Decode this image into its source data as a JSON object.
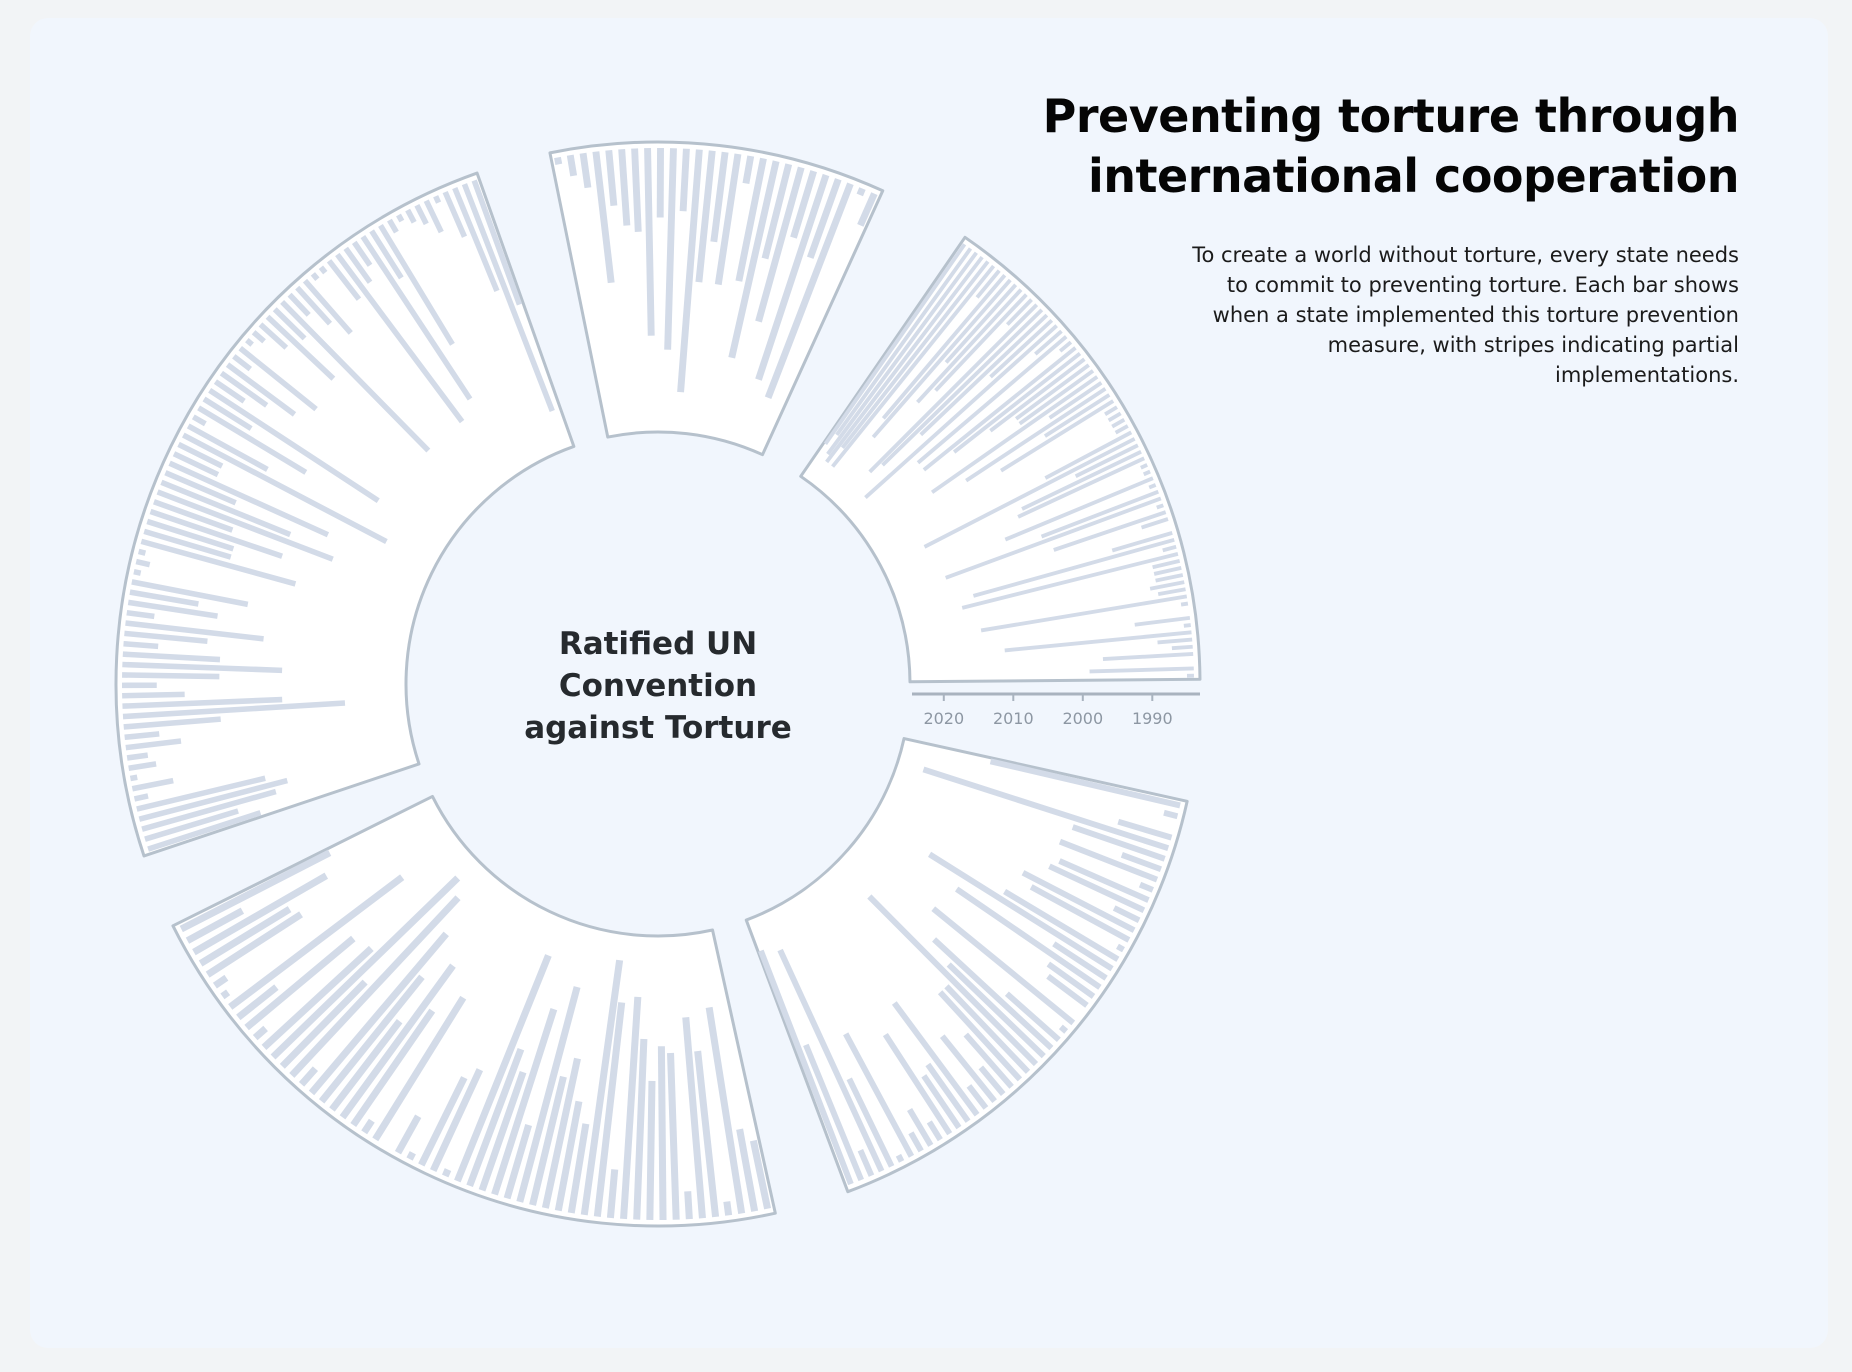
{
  "header": {
    "title_line1": "Preventing torture through",
    "title_line2": "international cooperation",
    "subtitle": "To create a world without torture, every state needs to commit to preventing torture. Each bar shows when a state implemented this torture prevention measure, with stripes indicating partial implementations."
  },
  "colors": {
    "background": "#f1f6fd",
    "sector_fill": "#ffffff",
    "bar": "#d3dbe8",
    "sector_stroke": "#b6c1cc",
    "axis": "#a9b3bf",
    "tick_text": "#8d97a3",
    "title": "#050505",
    "center_text": "#262a2e"
  },
  "chart_data": {
    "type": "radial-bar",
    "center_label_lines": [
      "Ratified UN",
      "Convention",
      "against Torture"
    ],
    "axis": {
      "domain": [
        1984,
        2024
      ],
      "ticks": [
        1990,
        2000,
        2010,
        2020
      ],
      "tick_labels": [
        "1990",
        "2000",
        "2010",
        "2020"
      ]
    },
    "sectors": [
      {
        "id": "east",
        "ratification_years": [
          2019,
          2017,
          2020,
          2021,
          2018,
          2021,
          1989,
          2011,
          2014,
          1999,
          2006,
          2003,
          1989,
          2018,
          2016,
          2009,
          1996,
          2021,
          1989,
          2012,
          1986,
          2012,
          2007,
          2001,
          1997,
          1997,
          2013,
          1993,
          2008,
          1995,
          2003,
          1986,
          1986,
          1986,
          1986,
          1998,
          2018,
          1994,
          2003,
          2004,
          1985,
          1985,
          2007,
          1985,
          2002,
          2017,
          1985,
          2001,
          1988,
          1984,
          1993,
          2014,
          1986,
          2016,
          1988,
          1988,
          1988,
          1989,
          1988,
          2014,
          1985,
          1984,
          1992,
          1985,
          2011,
          1989,
          1987,
          1997,
          1984,
          1999,
          1985
        ]
      },
      {
        "id": "north",
        "ratification_years": [
          1985,
          1987,
          1989,
          2003,
          1992,
          1995,
          1996,
          2011,
          1994,
          2013,
          1993,
          2019,
          2003,
          1997,
          2003,
          1988,
          2002,
          2013,
          1998,
          2007,
          1994,
          2015,
          1996,
          2017,
          1985,
          1989
        ]
      },
      {
        "id": "west",
        "ratification_years": [
          2001,
          1998,
          2004,
          2006,
          2003,
          1986,
          1990,
          1985,
          1988,
          1987,
          1992,
          1989,
          1998,
          2016,
          2007,
          1993,
          1989,
          1998,
          2007,
          1998,
          1989,
          1996,
          2004,
          1988,
          1997,
          1994,
          2001,
          1985,
          1986,
          1985,
          2007,
          1997,
          1997,
          2004,
          1996,
          2011,
          2004,
          1995,
          2009,
          1991,
          1991,
          2017,
          1997,
          1986,
          2002,
          1992,
          2013,
          1989,
          1992,
          1996,
          1987,
          1998,
          1985,
          1986,
          1989,
          1997,
          1990,
          2014,
          1988,
          1991,
          1994,
          1985,
          1985,
          1991,
          2014,
          1990,
          1988,
          2012,
          1992,
          2004,
          1986,
          1985,
          1986,
          1987,
          1989,
          1985,
          1991,
          2000,
          2019,
          2003
        ]
      },
      {
        "id": "southwest",
        "ratification_years": [
          1994,
          1996,
          2014,
          1986,
          2008,
          2013,
          1988,
          2008,
          2009,
          2004,
          2010,
          2016,
          1991,
          2015,
          2021,
          1997,
          2000,
          2006,
          2003,
          2016,
          1995,
          2012,
          2002,
          2005,
          2019,
          1985,
          2000,
          1998,
          1985,
          1990,
          1984,
          2008,
          1986,
          2004,
          2011,
          2000,
          2007,
          2014,
          1987,
          2019,
          2001,
          2021,
          2005,
          1986,
          2004,
          1991,
          2015,
          1985,
          1986,
          2000,
          1999,
          2006,
          1993,
          2008
        ]
      },
      {
        "id": "southeast",
        "ratification_years": [
          2012,
          1986,
          1984,
          1992,
          2021,
          1998,
          1990,
          1999,
          1986,
          1998,
          1999,
          1988,
          2002,
          2000,
          1985,
          2003,
          2015,
          1993,
          2009,
          1992,
          1991,
          1984,
          2010,
          1985,
          1994,
          2007,
          2003,
          2018,
          2001,
          2001,
          1994,
          1989,
          1996,
          1988,
          2004,
          1994,
          1993,
          2001,
          1987,
          1990,
          1987,
          2004,
          1985,
          1998,
          2019,
          1988,
          2005,
          2020
        ]
      }
    ]
  }
}
